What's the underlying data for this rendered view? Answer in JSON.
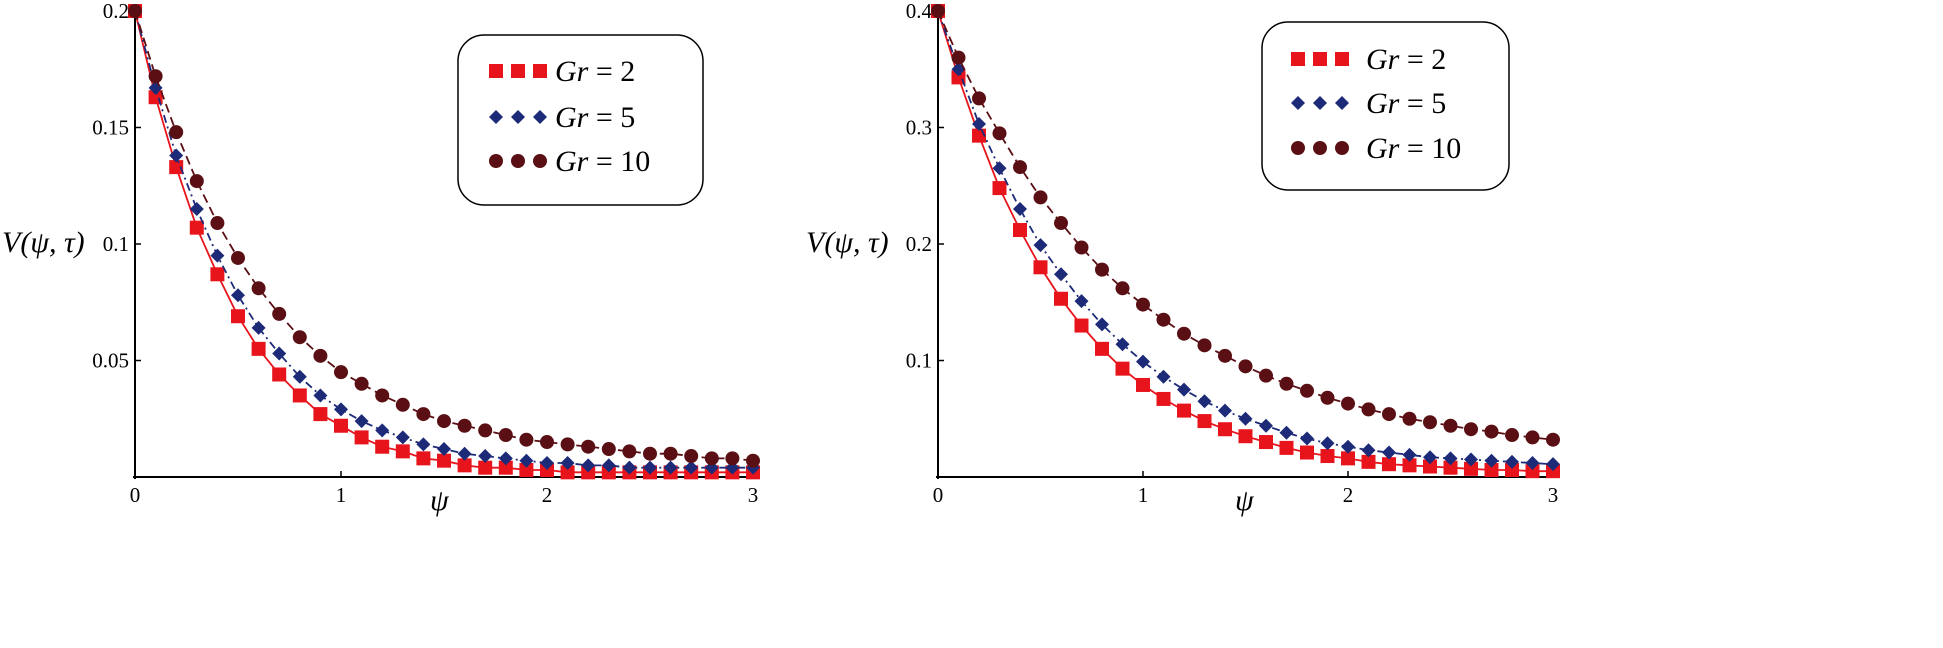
{
  "chart_data": [
    {
      "type": "line",
      "title": "",
      "xlabel": "ψ",
      "ylabel": "V(ψ, τ)",
      "xlim": [
        0,
        3
      ],
      "ylim": [
        0,
        0.2
      ],
      "xticks": [
        0,
        1,
        2,
        3
      ],
      "xtick_labels": [
        "0",
        "1",
        "2",
        "3"
      ],
      "yticks": [
        0.05,
        0.1,
        0.15,
        0.2
      ],
      "ytick_labels": [
        "0.05",
        "0.1",
        "0.15",
        "0.2"
      ],
      "grid": false,
      "legend_position": "top-right",
      "x": [
        0,
        0.1,
        0.2,
        0.3,
        0.4,
        0.5,
        0.6,
        0.7,
        0.8,
        0.9,
        1.0,
        1.1,
        1.2,
        1.3,
        1.4,
        1.5,
        1.6,
        1.7,
        1.8,
        1.9,
        2.0,
        2.1,
        2.2,
        2.3,
        2.4,
        2.5,
        2.6,
        2.7,
        2.8,
        2.9,
        3.0
      ],
      "series": [
        {
          "name": "Gr = 2",
          "gr": "2",
          "color": "#e8141c",
          "marker": "square",
          "line_style": "solid",
          "values": [
            0.2,
            0.163,
            0.133,
            0.107,
            0.087,
            0.069,
            0.055,
            0.044,
            0.035,
            0.027,
            0.022,
            0.017,
            0.013,
            0.011,
            0.008,
            0.007,
            0.005,
            0.004,
            0.004,
            0.003,
            0.003,
            0.002,
            0.002,
            0.002,
            0.002,
            0.002,
            0.002,
            0.002,
            0.002,
            0.002,
            0.002
          ]
        },
        {
          "name": "Gr = 5",
          "gr": "5",
          "color": "#1c2a78",
          "marker": "diamond",
          "line_style": "dash-dot",
          "values": [
            0.2,
            0.167,
            0.138,
            0.115,
            0.095,
            0.078,
            0.064,
            0.053,
            0.043,
            0.035,
            0.029,
            0.024,
            0.02,
            0.017,
            0.014,
            0.012,
            0.01,
            0.009,
            0.008,
            0.007,
            0.006,
            0.006,
            0.005,
            0.005,
            0.004,
            0.004,
            0.004,
            0.004,
            0.004,
            0.004,
            0.004
          ]
        },
        {
          "name": "Gr = 10",
          "gr": "10",
          "color": "#5a0f14",
          "marker": "circle",
          "line_style": "dashed",
          "values": [
            0.2,
            0.172,
            0.148,
            0.127,
            0.109,
            0.094,
            0.081,
            0.07,
            0.06,
            0.052,
            0.045,
            0.04,
            0.035,
            0.031,
            0.027,
            0.024,
            0.022,
            0.02,
            0.018,
            0.016,
            0.015,
            0.014,
            0.013,
            0.012,
            0.011,
            0.01,
            0.01,
            0.009,
            0.008,
            0.008,
            0.007
          ]
        }
      ]
    },
    {
      "type": "line",
      "title": "",
      "xlabel": "ψ",
      "ylabel": "V(ψ, τ)",
      "xlim": [
        0,
        3
      ],
      "ylim": [
        0,
        0.4
      ],
      "xticks": [
        0,
        1,
        2,
        3
      ],
      "xtick_labels": [
        "0",
        "1",
        "2",
        "3"
      ],
      "yticks": [
        0.1,
        0.2,
        0.3,
        0.4
      ],
      "ytick_labels": [
        "0.1",
        "0.2",
        "0.3",
        "0.4"
      ],
      "grid": false,
      "legend_position": "top-right",
      "x": [
        0,
        0.1,
        0.2,
        0.3,
        0.4,
        0.5,
        0.6,
        0.7,
        0.8,
        0.9,
        1.0,
        1.1,
        1.2,
        1.3,
        1.4,
        1.5,
        1.6,
        1.7,
        1.8,
        1.9,
        2.0,
        2.1,
        2.2,
        2.3,
        2.4,
        2.5,
        2.6,
        2.7,
        2.8,
        2.9,
        3.0
      ],
      "series": [
        {
          "name": "Gr = 2",
          "gr": "2",
          "color": "#e8141c",
          "marker": "square",
          "line_style": "solid",
          "values": [
            0.4,
            0.343,
            0.293,
            0.248,
            0.212,
            0.18,
            0.153,
            0.13,
            0.11,
            0.093,
            0.079,
            0.067,
            0.057,
            0.048,
            0.041,
            0.035,
            0.03,
            0.025,
            0.021,
            0.018,
            0.016,
            0.013,
            0.011,
            0.01,
            0.009,
            0.008,
            0.007,
            0.006,
            0.006,
            0.005,
            0.005
          ]
        },
        {
          "name": "Gr = 5",
          "gr": "5",
          "color": "#1c2a78",
          "marker": "diamond",
          "line_style": "dash-dot",
          "values": [
            0.4,
            0.35,
            0.303,
            0.265,
            0.23,
            0.199,
            0.174,
            0.151,
            0.131,
            0.114,
            0.099,
            0.086,
            0.075,
            0.065,
            0.057,
            0.05,
            0.044,
            0.038,
            0.033,
            0.029,
            0.026,
            0.023,
            0.021,
            0.019,
            0.017,
            0.016,
            0.015,
            0.014,
            0.013,
            0.012,
            0.011
          ]
        },
        {
          "name": "Gr = 10",
          "gr": "10",
          "color": "#5a0f14",
          "marker": "circle",
          "line_style": "dashed",
          "values": [
            0.4,
            0.36,
            0.325,
            0.295,
            0.266,
            0.24,
            0.218,
            0.197,
            0.178,
            0.162,
            0.148,
            0.135,
            0.123,
            0.113,
            0.104,
            0.095,
            0.087,
            0.08,
            0.074,
            0.068,
            0.063,
            0.058,
            0.054,
            0.05,
            0.047,
            0.044,
            0.041,
            0.039,
            0.036,
            0.034,
            0.032
          ]
        }
      ]
    }
  ]
}
